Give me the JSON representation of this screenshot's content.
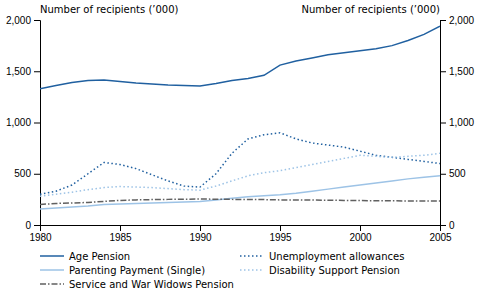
{
  "chart_data": {
    "type": "line",
    "ylabel": "Number of recipients (’000)",
    "y2label": "Number of recipients (’000)",
    "x": [
      1980,
      1981,
      1982,
      1983,
      1984,
      1985,
      1986,
      1987,
      1988,
      1989,
      1990,
      1991,
      1992,
      1993,
      1994,
      1995,
      1996,
      1997,
      1998,
      1999,
      2000,
      2001,
      2002,
      2003,
      2004,
      2005
    ],
    "xlim": [
      1980,
      2005
    ],
    "xticks": [
      1980,
      1985,
      1990,
      1995,
      2000,
      2005
    ],
    "ylim": [
      0,
      2000
    ],
    "yticks": [
      0,
      500,
      {
        "value": 1000,
        "label": "1,000"
      },
      {
        "value": 1500,
        "label": "1,500"
      },
      {
        "value": 2000,
        "label": "2,000"
      }
    ],
    "y2lim": [
      0,
      2000
    ],
    "y2ticks": [
      0,
      500,
      {
        "value": 1000,
        "label": "1,000"
      },
      {
        "value": 1500,
        "label": "1,500"
      },
      {
        "value": 2000,
        "label": "2,000"
      }
    ],
    "grid": false,
    "legend": "below",
    "series": [
      {
        "name": "Age Pension",
        "color": "#2060A0",
        "line_style": "solid",
        "values": [
          1330,
          1360,
          1390,
          1410,
          1415,
          1400,
          1385,
          1375,
          1365,
          1360,
          1355,
          1380,
          1410,
          1430,
          1460,
          1560,
          1600,
          1630,
          1660,
          1680,
          1700,
          1720,
          1750,
          1800,
          1860,
          1940
        ]
      },
      {
        "name": "Unemployment allowances",
        "color": "#2060A0",
        "line_style": "dotted",
        "values": [
          300,
          330,
          390,
          500,
          610,
          590,
          550,
          490,
          430,
          380,
          370,
          500,
          700,
          840,
          880,
          900,
          840,
          800,
          780,
          760,
          720,
          680,
          660,
          640,
          620,
          600
        ]
      },
      {
        "name": "Parenting Payment (Single)",
        "color": "#9DC3E6",
        "line_style": "solid",
        "values": [
          155,
          165,
          175,
          185,
          200,
          205,
          210,
          215,
          220,
          225,
          230,
          245,
          260,
          275,
          285,
          295,
          310,
          330,
          350,
          370,
          390,
          410,
          430,
          450,
          465,
          480
        ]
      },
      {
        "name": "Disability Support Pension",
        "color": "#9DC3E6",
        "line_style": "dotted",
        "values": [
          280,
          300,
          320,
          345,
          365,
          375,
          370,
          365,
          355,
          345,
          340,
          380,
          430,
          480,
          510,
          530,
          560,
          590,
          620,
          650,
          680,
          670,
          660,
          670,
          680,
          700
        ]
      },
      {
        "name": "Service and War Widows Pension",
        "color": "#606060",
        "line_style": "dashdot",
        "values": [
          200,
          210,
          215,
          220,
          230,
          240,
          245,
          248,
          250,
          252,
          253,
          252,
          250,
          250,
          248,
          245,
          245,
          243,
          242,
          240,
          238,
          237,
          236,
          235,
          234,
          233
        ]
      }
    ]
  }
}
